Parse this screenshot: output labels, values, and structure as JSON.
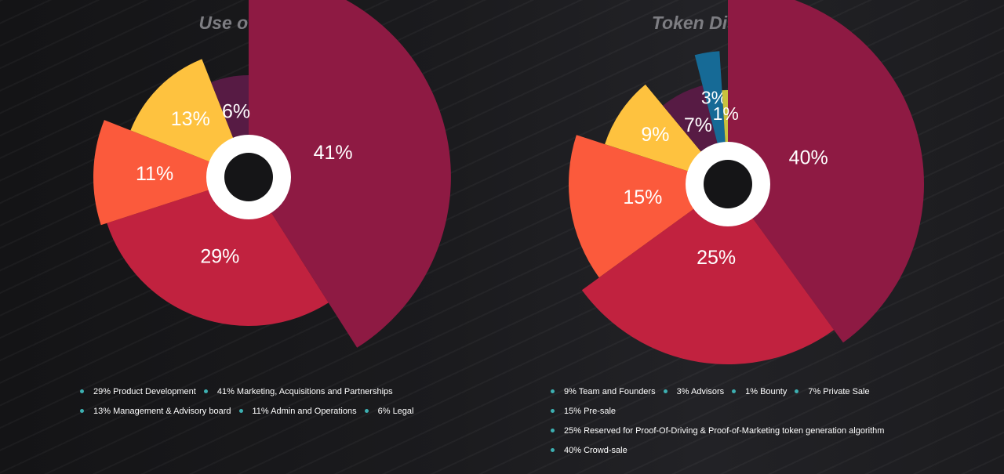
{
  "chart_data": [
    {
      "type": "pie",
      "title": "Use of Fund",
      "slices": [
        {
          "label": "41%",
          "value": 41,
          "color": "#8e1a43"
        },
        {
          "label": "29%",
          "value": 29,
          "color": "#c1223f"
        },
        {
          "label": "11%",
          "value": 11,
          "color": "#fb5a3c"
        },
        {
          "label": "13%",
          "value": 13,
          "color": "#fec23f"
        },
        {
          "label": "6%",
          "value": 6,
          "color": "#571b44"
        }
      ],
      "legend": [
        [
          "29% Product Development",
          "41% Marketing, Acquisitions and Partnerships"
        ],
        [
          "13% Management & Advisory board",
          "11% Admin and Operations",
          "6% Legal"
        ]
      ]
    },
    {
      "type": "pie",
      "title": "Token Distribution",
      "slices": [
        {
          "label": "40%",
          "value": 40,
          "color": "#8e1a43"
        },
        {
          "label": "25%",
          "value": 25,
          "color": "#c1223f"
        },
        {
          "label": "15%",
          "value": 15,
          "color": "#fb5a3c"
        },
        {
          "label": "9%",
          "value": 9,
          "color": "#fec23f"
        },
        {
          "label": "7%",
          "value": 7,
          "color": "#571b44"
        },
        {
          "label": "3%",
          "value": 3,
          "color": "#166a96"
        },
        {
          "label": "1%",
          "value": 1,
          "color": "#c9c23e"
        }
      ],
      "legend": [
        [
          "9% Team and Founders",
          "3% Advisors",
          "1% Bounty",
          "7% Private Sale"
        ],
        [
          "15% Pre-sale"
        ],
        [
          "25% Reserved for Proof-Of-Driving & Proof-of-Marketing token generation algorithm"
        ],
        [
          "40% Crowd-sale"
        ]
      ]
    }
  ]
}
